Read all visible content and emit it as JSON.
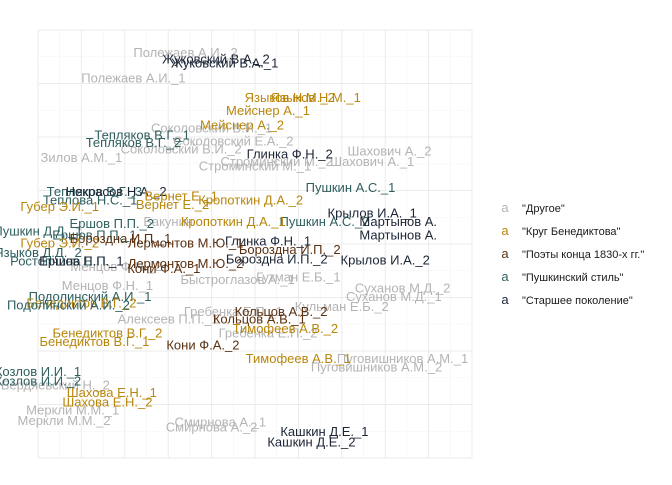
{
  "chart_data": {
    "type": "scatter",
    "marker": "text-label",
    "title": "",
    "xlabel": "",
    "ylabel": "",
    "xlim": [
      0,
      1
    ],
    "ylim": [
      0,
      1
    ],
    "grid": true,
    "legend_position": "right",
    "legend_key_glyph": "a",
    "groups": [
      {
        "name": "\"Другое\"",
        "color": "#b4b4b4"
      },
      {
        "name": "\"Круг Бенедиктова\"",
        "color": "#b8860b"
      },
      {
        "name": "\"Поэты конца 1830-х гг.\"",
        "color": "#5a3010"
      },
      {
        "name": "\"Пушкинский стиль\"",
        "color": "#2f5f5f"
      },
      {
        "name": "\"Старшее поколение\"",
        "color": "#1c2536"
      }
    ],
    "points": [
      {
        "label": "Полежаев А.И._2",
        "group": 0,
        "x": 0.34,
        "y": 0.945
      },
      {
        "label": "Жуковский В.А._2",
        "group": 4,
        "x": 0.41,
        "y": 0.93
      },
      {
        "label": "Жуковский В.А._1",
        "group": 4,
        "x": 0.43,
        "y": 0.92
      },
      {
        "label": "Полежаев А.И._1",
        "group": 0,
        "x": 0.22,
        "y": 0.885
      },
      {
        "label": "Языков Н.М._2",
        "group": 1,
        "x": 0.58,
        "y": 0.84
      },
      {
        "label": "Языков Н.М._1",
        "group": 1,
        "x": 0.64,
        "y": 0.84
      },
      {
        "label": "Мейснер А._1",
        "group": 1,
        "x": 0.53,
        "y": 0.81
      },
      {
        "label": "Мейснер А._2",
        "group": 1,
        "x": 0.47,
        "y": 0.775
      },
      {
        "label": "Соколовский В.И._1",
        "group": 0,
        "x": 0.4,
        "y": 0.768
      },
      {
        "label": "Тепляков В.Г._1",
        "group": 3,
        "x": 0.24,
        "y": 0.752
      },
      {
        "label": "Тепляков В.Г._2",
        "group": 3,
        "x": 0.22,
        "y": 0.735
      },
      {
        "label": "Соколовский Е.А._2",
        "group": 0,
        "x": 0.45,
        "y": 0.738
      },
      {
        "label": "Соколовский В.И._2",
        "group": 0,
        "x": 0.33,
        "y": 0.72
      },
      {
        "label": "Зилов А.М._1",
        "group": 0,
        "x": 0.1,
        "y": 0.7
      },
      {
        "label": "Глинка Ф.Н._2",
        "group": 4,
        "x": 0.58,
        "y": 0.708
      },
      {
        "label": "Строминский М._2",
        "group": 0,
        "x": 0.55,
        "y": 0.69
      },
      {
        "label": "Шахович А._2",
        "group": 0,
        "x": 0.81,
        "y": 0.715
      },
      {
        "label": "Шахович А._1",
        "group": 0,
        "x": 0.77,
        "y": 0.69
      },
      {
        "label": "Строминский М._1",
        "group": 0,
        "x": 0.5,
        "y": 0.68
      },
      {
        "label": "Пушкин А.С._1",
        "group": 3,
        "x": 0.72,
        "y": 0.63
      },
      {
        "label": "Тепляков В.Г._3",
        "group": 3,
        "x": 0.13,
        "y": 0.62
      },
      {
        "label": "Некрасов Н.А._2",
        "group": 4,
        "x": 0.18,
        "y": 0.62
      },
      {
        "label": "Вернет Е._1",
        "group": 1,
        "x": 0.33,
        "y": 0.61
      },
      {
        "label": "Теплова Н.С._1",
        "group": 3,
        "x": 0.12,
        "y": 0.6
      },
      {
        "label": "Вернет Е._2",
        "group": 1,
        "x": 0.31,
        "y": 0.59
      },
      {
        "label": "Кропоткин Д.А._2",
        "group": 1,
        "x": 0.49,
        "y": 0.6
      },
      {
        "label": "Губер Э.И._1",
        "group": 1,
        "x": 0.05,
        "y": 0.585
      },
      {
        "label": "Крылов И.А._1",
        "group": 4,
        "x": 0.77,
        "y": 0.57
      },
      {
        "label": "Пушкин А.С._2",
        "group": 3,
        "x": 0.66,
        "y": 0.55
      },
      {
        "label": "Кропоткин Д.А._1",
        "group": 1,
        "x": 0.45,
        "y": 0.55
      },
      {
        "label": "Ершов П.П._2",
        "group": 3,
        "x": 0.17,
        "y": 0.545
      },
      {
        "label": "Мартынов А.",
        "group": 4,
        "x": 0.83,
        "y": 0.55
      },
      {
        "label": "Мартынов А.",
        "group": 4,
        "x": 0.83,
        "y": 0.518
      },
      {
        "label": "Бакунин",
        "group": 0,
        "x": 0.3,
        "y": 0.55
      },
      {
        "label": "Пушкин Д.Д._1",
        "group": 3,
        "x": 0.0,
        "y": 0.528
      },
      {
        "label": "Ершов П.П._1",
        "group": 3,
        "x": 0.13,
        "y": 0.518
      },
      {
        "label": "Бороздна И.П._1",
        "group": 2,
        "x": 0.19,
        "y": 0.51
      },
      {
        "label": "Глинка Ф.Н._1",
        "group": 4,
        "x": 0.53,
        "y": 0.505
      },
      {
        "label": "Лермонтов М.Ю._1",
        "group": 2,
        "x": 0.34,
        "y": 0.5
      },
      {
        "label": "Губер Э.И._2",
        "group": 1,
        "x": 0.05,
        "y": 0.5
      },
      {
        "label": "Бороздна И.П._2",
        "group": 2,
        "x": 0.58,
        "y": 0.485
      },
      {
        "label": "Языков Д.Д._2",
        "group": 3,
        "x": 0.0,
        "y": 0.478
      },
      {
        "label": "Бороздна И.П._2",
        "group": 4,
        "x": 0.55,
        "y": 0.462
      },
      {
        "label": "Крылов И.А._2",
        "group": 4,
        "x": 0.8,
        "y": 0.46
      },
      {
        "label": "Ростопчина Е.П.",
        "group": 3,
        "x": 0.05,
        "y": 0.458
      },
      {
        "label": "Лермонтов М.Ю._2",
        "group": 2,
        "x": 0.34,
        "y": 0.452
      },
      {
        "label": "Ершов П.П._1",
        "group": 4,
        "x": 0.1,
        "y": 0.458
      },
      {
        "label": "Кони Ф.А._1",
        "group": 2,
        "x": 0.29,
        "y": 0.44
      },
      {
        "label": "Гутман Е.Б._1",
        "group": 0,
        "x": 0.6,
        "y": 0.42
      },
      {
        "label": "Быстроглазов А._1",
        "group": 0,
        "x": 0.46,
        "y": 0.415
      },
      {
        "label": "Менцов Ф.Н._2",
        "group": 0,
        "x": 0.18,
        "y": 0.445
      },
      {
        "label": "Менцов Ф.Н._1",
        "group": 0,
        "x": 0.16,
        "y": 0.4
      },
      {
        "label": "Суханов М.Д._2",
        "group": 0,
        "x": 0.84,
        "y": 0.395
      },
      {
        "label": "Суханов М.Д._1",
        "group": 0,
        "x": 0.82,
        "y": 0.375
      },
      {
        "label": "Подолинский А.И._1",
        "group": 3,
        "x": 0.12,
        "y": 0.375
      },
      {
        "label": "Бенедиктов В.Г._2",
        "group": 1,
        "x": 0.1,
        "y": 0.36
      },
      {
        "label": "Подолинский А.И._2",
        "group": 3,
        "x": 0.07,
        "y": 0.355
      },
      {
        "label": "Кульман Е.Б._2",
        "group": 0,
        "x": 0.7,
        "y": 0.352
      },
      {
        "label": "Гребенка Е.П._1",
        "group": 0,
        "x": 0.45,
        "y": 0.34
      },
      {
        "label": "Кольцов А.В._2",
        "group": 2,
        "x": 0.56,
        "y": 0.34
      },
      {
        "label": "Кольцов А.В._1",
        "group": 2,
        "x": 0.51,
        "y": 0.322
      },
      {
        "label": "Алексеев П.П._1",
        "group": 0,
        "x": 0.3,
        "y": 0.322
      },
      {
        "label": "Тимофеев А.В._2",
        "group": 1,
        "x": 0.57,
        "y": 0.3
      },
      {
        "label": "Гребенка Е.П._2",
        "group": 0,
        "x": 0.53,
        "y": 0.29
      },
      {
        "label": "Бенедиктов В.Г._2",
        "group": 1,
        "x": 0.16,
        "y": 0.29
      },
      {
        "label": "Бенедиктов В.Г._1",
        "group": 1,
        "x": 0.13,
        "y": 0.27
      },
      {
        "label": "Кони Ф.А._2",
        "group": 2,
        "x": 0.38,
        "y": 0.262
      },
      {
        "label": "Тимофеев А.В._1",
        "group": 1,
        "x": 0.6,
        "y": 0.23
      },
      {
        "label": "Пуговишников А.М._1",
        "group": 0,
        "x": 0.84,
        "y": 0.23
      },
      {
        "label": "Пуговишников А.М._2",
        "group": 0,
        "x": 0.78,
        "y": 0.21
      },
      {
        "label": "Козлов И.И._1",
        "group": 3,
        "x": 0.0,
        "y": 0.2
      },
      {
        "label": "Козлов И.И._2",
        "group": 3,
        "x": 0.0,
        "y": 0.178
      },
      {
        "label": "Бердяевский Н._2",
        "group": 0,
        "x": 0.04,
        "y": 0.168
      },
      {
        "label": "Шахова Е.Н._1",
        "group": 1,
        "x": 0.17,
        "y": 0.15
      },
      {
        "label": "Шахова Е.Н._2",
        "group": 1,
        "x": 0.16,
        "y": 0.128
      },
      {
        "label": "Меркли М.М._1",
        "group": 0,
        "x": 0.08,
        "y": 0.11
      },
      {
        "label": "Меркли М.М._2",
        "group": 0,
        "x": 0.06,
        "y": 0.085
      },
      {
        "label": "Смирнова А._2",
        "group": 0,
        "x": 0.4,
        "y": 0.07
      },
      {
        "label": "Смирнова А._1",
        "group": 0,
        "x": 0.42,
        "y": 0.082
      },
      {
        "label": "Кашкин Д.Е._1",
        "group": 4,
        "x": 0.66,
        "y": 0.06
      },
      {
        "label": "Кашкин Д.Е._2",
        "group": 4,
        "x": 0.63,
        "y": 0.035
      }
    ]
  }
}
